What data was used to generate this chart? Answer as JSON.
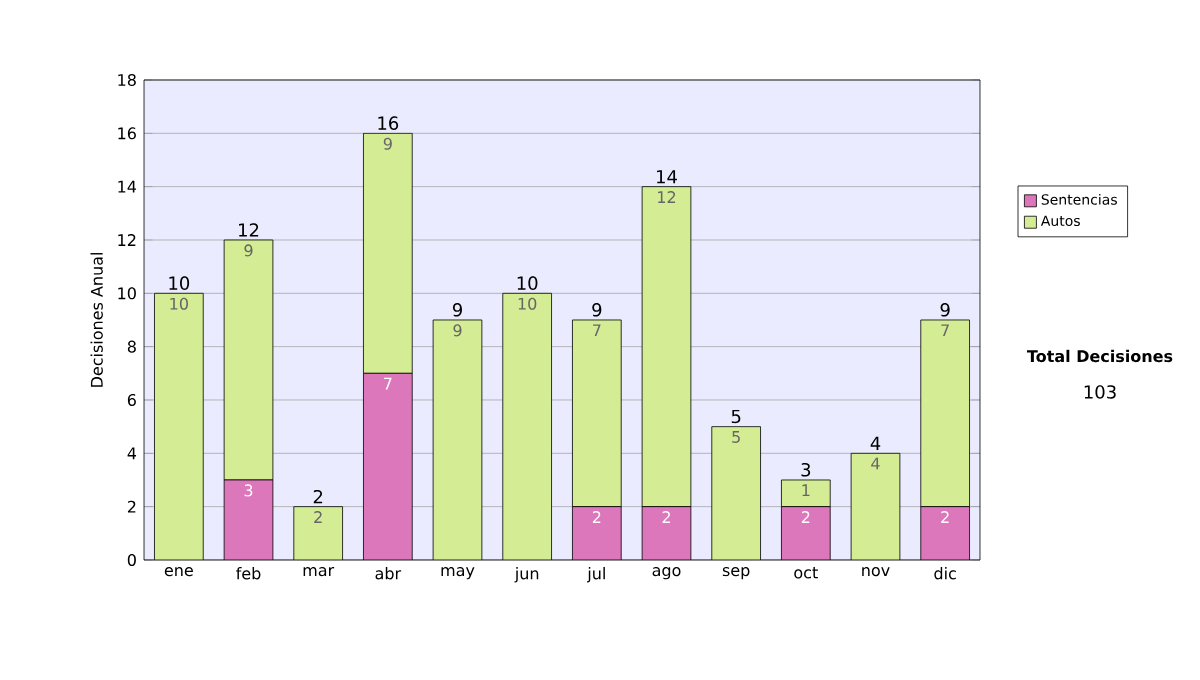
{
  "chart_data": {
    "type": "bar",
    "stacked": true,
    "ylabel": "Decisiones Anual",
    "categories": [
      "ene",
      "feb",
      "mar",
      "abr",
      "may",
      "jun",
      "jul",
      "ago",
      "sep",
      "oct",
      "nov",
      "dic"
    ],
    "series": [
      {
        "name": "Sentencias",
        "color": "#dd77bb",
        "values": [
          0,
          3,
          0,
          7,
          0,
          0,
          2,
          2,
          0,
          2,
          0,
          2
        ],
        "value_labels": [
          null,
          "3",
          null,
          "7",
          null,
          null,
          "2",
          "2",
          null,
          "2",
          null,
          "2"
        ]
      },
      {
        "name": "Autos",
        "color": "#d4ec94",
        "values": [
          10,
          9,
          2,
          9,
          9,
          10,
          7,
          12,
          5,
          1,
          4,
          7
        ],
        "value_labels": [
          "10",
          "9",
          "2",
          "9",
          "9",
          "10",
          "7",
          "12",
          "5",
          "1",
          "4",
          "7"
        ]
      }
    ],
    "totals": [
      "10",
      "12",
      "2",
      "16",
      "9",
      "10",
      "9",
      "14",
      "5",
      "3",
      "4",
      "9"
    ],
    "ylim": [
      0,
      18
    ],
    "yticks": [
      0,
      2,
      4,
      6,
      8,
      10,
      12,
      14,
      16,
      18
    ],
    "grid": "y",
    "legend": "right",
    "annotations": [
      "Total Decisiones",
      "103"
    ]
  }
}
